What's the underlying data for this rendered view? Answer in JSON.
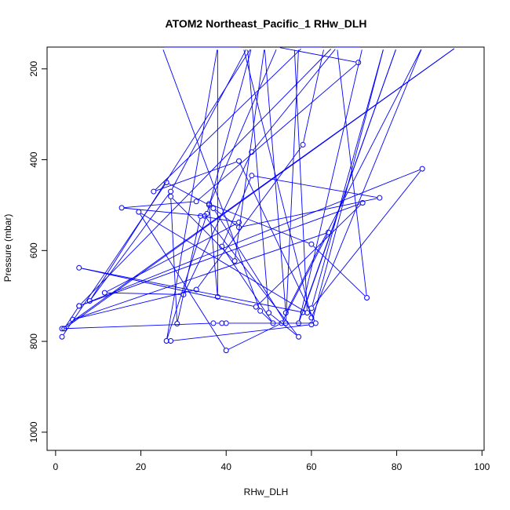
{
  "chart_data": {
    "type": "scatter",
    "title": "ATOM2 Northeast_Pacific_1 RHw_DLH",
    "xlabel": "RHw_DLH",
    "ylabel": "Pressure (mbar)",
    "xlim": [
      -2,
      100.5
    ],
    "ylim": [
      1040,
      152
    ],
    "y_reversed": true,
    "xticks": [
      0,
      20,
      40,
      60,
      80,
      100
    ],
    "yticks": [
      200,
      400,
      600,
      800,
      1000
    ],
    "grid": false,
    "legend": "none",
    "color": "#0000ff",
    "series": [
      {
        "style": "line+points",
        "points": [
          [
            1.5,
            790
          ],
          [
            26,
            450
          ],
          [
            36,
            500
          ],
          [
            52,
            152
          ],
          [
            71,
            186
          ],
          [
            33,
            492
          ],
          [
            15.5,
            506
          ],
          [
            35,
            524
          ],
          [
            57,
            790
          ],
          [
            50,
            737
          ],
          [
            45,
            152
          ],
          [
            27,
            470
          ],
          [
            8,
            711
          ],
          [
            46,
            152
          ],
          [
            35.5,
            519
          ],
          [
            26,
            799
          ],
          [
            38,
            152
          ],
          [
            38,
            702
          ],
          [
            36,
            497
          ],
          [
            60,
            586
          ],
          [
            73,
            704
          ],
          [
            66,
            152
          ],
          [
            46,
            383
          ],
          [
            30,
            697
          ],
          [
            11.5,
            693
          ],
          [
            43,
            538
          ],
          [
            34,
            524
          ],
          [
            28.5,
            761
          ],
          [
            27,
            481
          ],
          [
            42,
            623
          ],
          [
            49,
            152
          ],
          [
            54,
            737
          ],
          [
            86,
            152
          ],
          [
            60,
            748
          ],
          [
            44,
            152
          ],
          [
            25,
            152
          ],
          [
            48,
            733
          ],
          [
            51,
            760
          ],
          [
            39,
            591
          ],
          [
            46,
            435
          ],
          [
            76,
            484
          ],
          [
            43,
            549
          ],
          [
            37,
            507
          ],
          [
            54,
            760
          ],
          [
            57,
            152
          ],
          [
            63,
            152
          ],
          [
            58,
            367
          ],
          [
            33,
            686
          ],
          [
            4,
            752
          ],
          [
            64,
            560
          ],
          [
            53,
            760
          ],
          [
            40,
            820
          ],
          [
            19.5,
            515
          ],
          [
            59,
            737
          ],
          [
            56,
            152
          ],
          [
            58,
            152
          ],
          [
            23,
            470
          ],
          [
            43,
            403
          ],
          [
            61,
            760
          ],
          [
            40,
            760
          ],
          [
            39,
            760
          ],
          [
            37,
            760
          ],
          [
            1.5,
            772
          ],
          [
            94,
            152
          ],
          [
            2,
            772
          ],
          [
            5.5,
            722
          ],
          [
            65,
            152
          ],
          [
            72,
            152
          ],
          [
            57,
            760
          ],
          [
            80,
            152
          ],
          [
            58,
            736
          ],
          [
            5.5,
            638
          ],
          [
            47,
            724
          ],
          [
            72,
            495
          ],
          [
            5.5,
            722
          ],
          [
            86,
            420
          ],
          [
            60,
            727
          ],
          [
            77,
            152
          ],
          [
            60,
            763
          ],
          [
            27,
            799
          ]
        ]
      }
    ]
  }
}
